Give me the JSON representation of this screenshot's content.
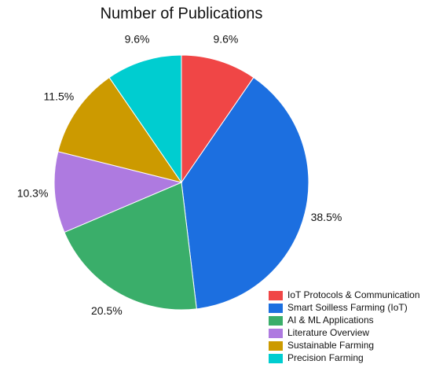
{
  "chart_data": {
    "type": "pie",
    "title": "Number of Publications",
    "categories": [
      "IoT Protocols & Communication",
      "Smart Soilless Farming (IoT)",
      "AI & ML Applications",
      "Literature Overview",
      "Sustainable Farming",
      "Precision Farming"
    ],
    "values": [
      9.6,
      38.5,
      20.5,
      10.3,
      11.5,
      9.6
    ],
    "value_labels": [
      "9.6%",
      "38.5%",
      "20.5%",
      "10.3%",
      "11.5%",
      "9.6%"
    ],
    "colors": [
      "#f04646",
      "#1c6fe0",
      "#3aae6a",
      "#ae7ae0",
      "#cc9a00",
      "#00cdd0"
    ],
    "legend": "lower right"
  }
}
